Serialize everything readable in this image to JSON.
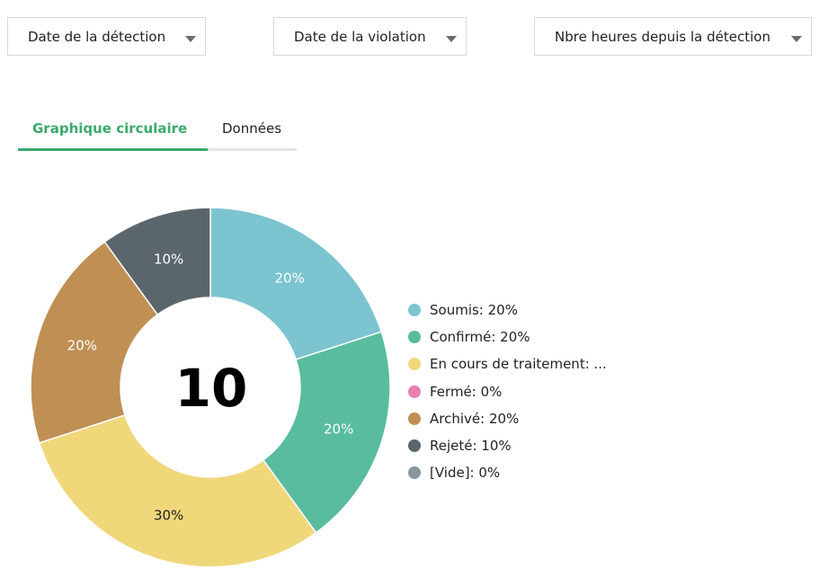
{
  "filters": {
    "detection_date": "Date de la détection",
    "violation_date": "Date de la violation",
    "hours_since_detection": "Nbre heures depuis la détection"
  },
  "tabs": {
    "pie_label": "Graphique circulaire",
    "data_label": "Données"
  },
  "legend": [
    {
      "label": "Soumis: 20%",
      "color": "#7cc4d0"
    },
    {
      "label": "Confirmé: 20%",
      "color": "#59bc9f"
    },
    {
      "label": "En cours de traitement: ...",
      "color": "#f0d77a"
    },
    {
      "label": "Fermé: 0%",
      "color": "#e87fb0"
    },
    {
      "label": "Archivé: 20%",
      "color": "#c08f54"
    },
    {
      "label": "Rejeté: 10%",
      "color": "#5b656c"
    },
    {
      "label": "[Vide]: 0%",
      "color": "#88969f"
    }
  ],
  "chart_data": {
    "type": "pie",
    "total_label": "10",
    "slices": [
      {
        "name": "Soumis",
        "value": 20,
        "label": "20%",
        "color": "#7cc4d0"
      },
      {
        "name": "Confirmé",
        "value": 20,
        "label": "20%",
        "color": "#59bc9f"
      },
      {
        "name": "En cours de traitement",
        "value": 30,
        "label": "30%",
        "color": "#f0d77a"
      },
      {
        "name": "Fermé",
        "value": 0,
        "label": "0%",
        "color": "#e87fb0"
      },
      {
        "name": "Archivé",
        "value": 20,
        "label": "20%",
        "color": "#c08f54"
      },
      {
        "name": "Rejeté",
        "value": 10,
        "label": "10%",
        "color": "#5b656c"
      },
      {
        "name": "[Vide]",
        "value": 0,
        "label": "0%",
        "color": "#88969f"
      }
    ],
    "legend_position": "right"
  }
}
